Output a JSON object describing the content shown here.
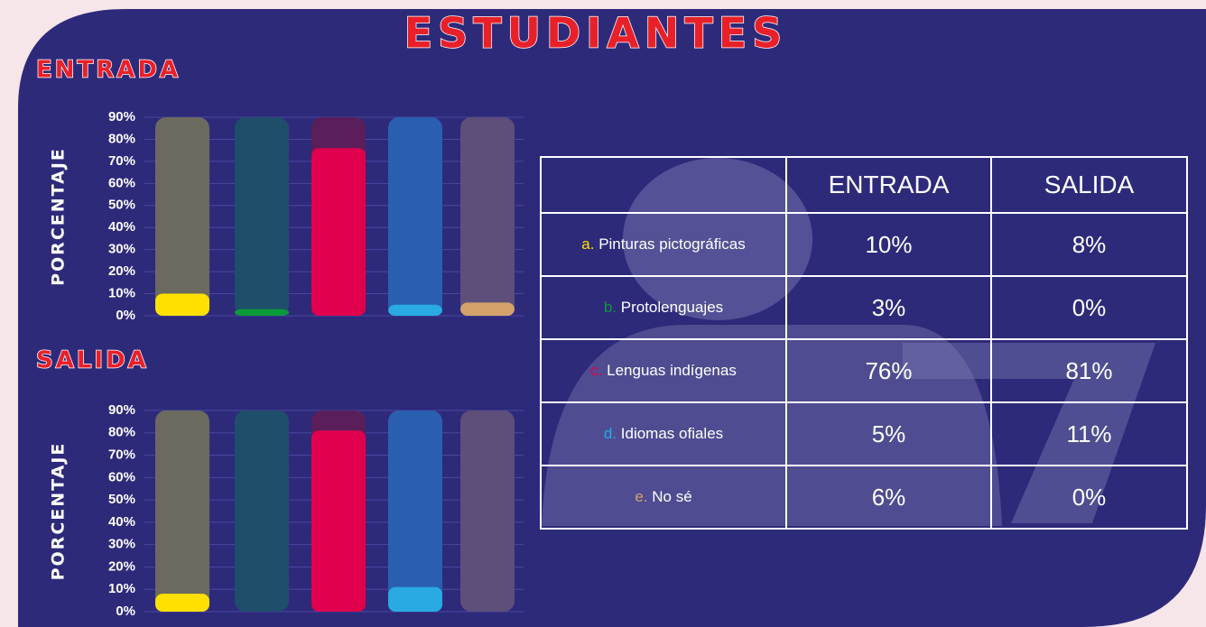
{
  "title": "ESTUDIANTES",
  "chart_data": [
    {
      "type": "bar",
      "title": "ENTRADA",
      "ylabel": "PORCENTAJE",
      "categories": [
        null,
        null,
        null,
        null,
        null
      ],
      "values": [
        10,
        3,
        76,
        5,
        6
      ],
      "colors": [
        "#ffe000",
        "#0a9a3a",
        "#e0004e",
        "#29aae2",
        "#d4a26a"
      ],
      "track_colors": [
        "#6b6a5f",
        "#1f4e6a",
        "#5a1f5a",
        "#2a5fb0",
        "#5e4f7a"
      ],
      "ylim": [
        0,
        90
      ],
      "yticks": [
        {
          "value": 0,
          "label": "0%"
        },
        {
          "value": 10,
          "label": "10%"
        },
        {
          "value": 20,
          "label": "20%"
        },
        {
          "value": 30,
          "label": "30%"
        },
        {
          "value": 40,
          "label": "40%"
        },
        {
          "value": 50,
          "label": "50%"
        },
        {
          "value": 60,
          "label": "60%"
        },
        {
          "value": 70,
          "label": "70%"
        },
        {
          "value": 80,
          "label": "80%"
        },
        {
          "value": 90,
          "label": "90%"
        }
      ]
    },
    {
      "type": "bar",
      "title": "SALIDA",
      "ylabel": "PORCENTAJE",
      "categories": [
        null,
        null,
        null,
        null,
        null
      ],
      "values": [
        8,
        0,
        81,
        11,
        0
      ],
      "colors": [
        "#ffe000",
        "#0a9a3a",
        "#e0004e",
        "#29aae2",
        "#d4a26a"
      ],
      "track_colors": [
        "#6b6a5f",
        "#1f4e6a",
        "#5a1f5a",
        "#2a5fb0",
        "#5e4f7a"
      ],
      "ylim": [
        0,
        90
      ],
      "yticks": [
        {
          "value": 0,
          "label": "0%"
        },
        {
          "value": 10,
          "label": "10%"
        },
        {
          "value": 20,
          "label": "20%"
        },
        {
          "value": 30,
          "label": "30%"
        },
        {
          "value": 40,
          "label": "40%"
        },
        {
          "value": 50,
          "label": "50%"
        },
        {
          "value": 60,
          "label": "60%"
        },
        {
          "value": 70,
          "label": "70%"
        },
        {
          "value": 80,
          "label": "80%"
        },
        {
          "value": 90,
          "label": "90%"
        }
      ]
    }
  ],
  "table": {
    "header": [
      "ENTRADA",
      "SALIDA"
    ],
    "rows": [
      {
        "letter": "a.",
        "label": "Pinturas pictográficas",
        "entrada": "10%",
        "salida": "8%"
      },
      {
        "letter": "b.",
        "label": "Protolenguajes",
        "entrada": "3%",
        "salida": "0%"
      },
      {
        "letter": "c.",
        "label": "Lenguas indígenas",
        "entrada": "76%",
        "salida": "81%"
      },
      {
        "letter": "d.",
        "label": "Idiomas ofiales",
        "entrada": "5%",
        "salida": "11%"
      },
      {
        "letter": "e.",
        "label": "No sé",
        "entrada": "6%",
        "salida": "0%"
      }
    ]
  }
}
